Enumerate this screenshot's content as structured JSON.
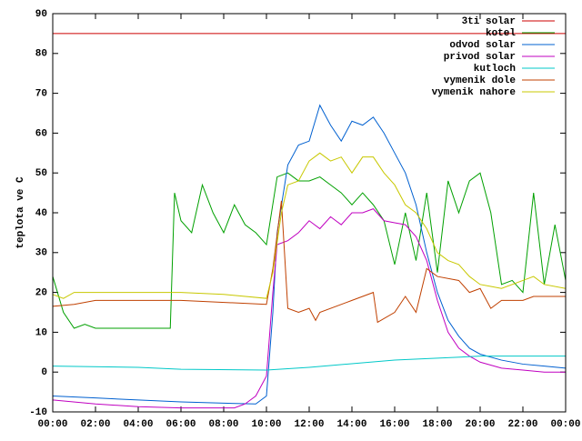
{
  "chart_data": {
    "type": "line",
    "ylabel": "teplota ve C",
    "xlim": [
      0,
      24
    ],
    "ylim": [
      -10,
      90
    ],
    "yticks": [
      -10,
      0,
      10,
      20,
      30,
      40,
      50,
      60,
      70,
      80,
      90
    ],
    "xticks": [
      {
        "value": 0,
        "label": "00:00"
      },
      {
        "value": 2,
        "label": "02:00"
      },
      {
        "value": 4,
        "label": "04:00"
      },
      {
        "value": 6,
        "label": "06:00"
      },
      {
        "value": 8,
        "label": "08:00"
      },
      {
        "value": 10,
        "label": "10:00"
      },
      {
        "value": 12,
        "label": "12:00"
      },
      {
        "value": 14,
        "label": "14:00"
      },
      {
        "value": 16,
        "label": "16:00"
      },
      {
        "value": 18,
        "label": "18:00"
      },
      {
        "value": 20,
        "label": "20:00"
      },
      {
        "value": 22,
        "label": "22:00"
      },
      {
        "value": 24,
        "label": "00:00"
      }
    ],
    "legend": "top-right",
    "series": [
      {
        "name": "3ti solar",
        "color": "#cc0000",
        "x": [
          0,
          24
        ],
        "values": [
          85,
          85
        ]
      },
      {
        "name": "kotel",
        "color": "#00a000",
        "x": [
          0,
          0.5,
          1,
          1.5,
          2,
          3,
          4,
          5,
          5.5,
          5.7,
          6,
          6.5,
          7,
          7.5,
          8,
          8.5,
          9,
          9.5,
          10,
          10.5,
          11,
          11.5,
          12,
          12.5,
          13,
          13.5,
          14,
          14.5,
          15,
          15.5,
          16,
          16.5,
          17,
          17.5,
          18,
          18.5,
          19,
          19.5,
          20,
          20.5,
          21,
          21.5,
          22,
          22.5,
          23,
          23.5,
          24
        ],
        "values": [
          24,
          15,
          11,
          12,
          11,
          11,
          11,
          11,
          11,
          45,
          38,
          35,
          47,
          40,
          35,
          42,
          37,
          35,
          32,
          49,
          50,
          48,
          48,
          49,
          47,
          45,
          42,
          45,
          42,
          38,
          27,
          40,
          28,
          45,
          25,
          48,
          40,
          48,
          50,
          40,
          22,
          23,
          20,
          45,
          22,
          37,
          23
        ]
      },
      {
        "name": "odvod solar",
        "color": "#0060d0",
        "x": [
          0,
          2,
          4,
          6,
          8,
          9.5,
          10,
          10.3,
          10.5,
          11,
          11.5,
          12,
          12.5,
          13,
          13.5,
          14,
          14.5,
          15,
          15.5,
          16,
          16.5,
          17,
          17.5,
          18,
          18.5,
          19,
          19.5,
          20,
          21,
          22,
          23,
          24
        ],
        "values": [
          -6,
          -6.5,
          -7,
          -7.5,
          -7.8,
          -8,
          -6,
          15,
          35,
          52,
          57,
          58,
          67,
          62,
          58,
          63,
          62,
          64,
          60,
          55,
          50,
          42,
          30,
          20,
          13,
          9,
          6,
          4.5,
          3,
          2,
          1.5,
          1
        ]
      },
      {
        "name": "privod solar",
        "color": "#c000c0",
        "x": [
          0,
          2,
          4,
          6,
          8,
          8.5,
          9,
          9.5,
          10,
          10.3,
          10.5,
          11,
          11.5,
          12,
          12.5,
          13,
          13.5,
          14,
          14.5,
          15,
          15.5,
          16,
          16.5,
          17,
          17.5,
          18,
          18.5,
          19,
          19.5,
          20,
          21,
          22,
          23,
          24
        ],
        "values": [
          -7,
          -8,
          -8.7,
          -9,
          -9,
          -9,
          -8,
          -6,
          -1,
          20,
          32,
          33,
          35,
          38,
          36,
          39,
          37,
          40,
          40,
          41,
          38,
          37.5,
          37,
          34,
          28,
          18,
          10,
          6,
          4,
          2.5,
          1,
          0.5,
          0,
          0
        ]
      },
      {
        "name": "kutloch",
        "color": "#00c8c8",
        "x": [
          0,
          4,
          6,
          10,
          12,
          16,
          20,
          24
        ],
        "values": [
          1.5,
          1.2,
          0.7,
          0.5,
          1.2,
          3,
          4,
          4
        ]
      },
      {
        "name": "vymenik dole",
        "color": "#c04000",
        "x": [
          0,
          1,
          2,
          6,
          10,
          10.3,
          10.7,
          11,
          11.5,
          12,
          12.3,
          12.5,
          14,
          15,
          15.2,
          16,
          16.5,
          17,
          17.5,
          18,
          19,
          19.5,
          20,
          20.5,
          21,
          22,
          22.5,
          24
        ],
        "values": [
          16.5,
          17,
          18,
          18,
          17,
          26,
          43,
          16,
          15,
          16,
          13,
          15,
          18,
          20,
          12.5,
          15,
          19,
          15,
          26,
          24,
          23,
          20,
          21,
          16,
          18,
          18,
          19,
          19
        ]
      },
      {
        "name": "vymenik nahore",
        "color": "#c8c800",
        "x": [
          0,
          0.5,
          1,
          2,
          6,
          8,
          10,
          10.3,
          10.7,
          11,
          11.5,
          12,
          12.5,
          13,
          13.5,
          14,
          14.5,
          15,
          15.5,
          16,
          16.5,
          17,
          17.5,
          18,
          18.5,
          19,
          19.5,
          20,
          20.5,
          21,
          22,
          22.5,
          23,
          24
        ],
        "values": [
          19.5,
          18.5,
          20,
          20,
          20,
          19.5,
          18.5,
          25,
          40,
          47,
          48,
          53,
          55,
          53,
          54,
          50,
          54,
          54,
          50,
          47,
          42,
          40,
          36,
          30,
          28,
          27,
          24,
          22,
          21.5,
          21,
          23,
          24,
          22,
          21
        ]
      }
    ]
  }
}
